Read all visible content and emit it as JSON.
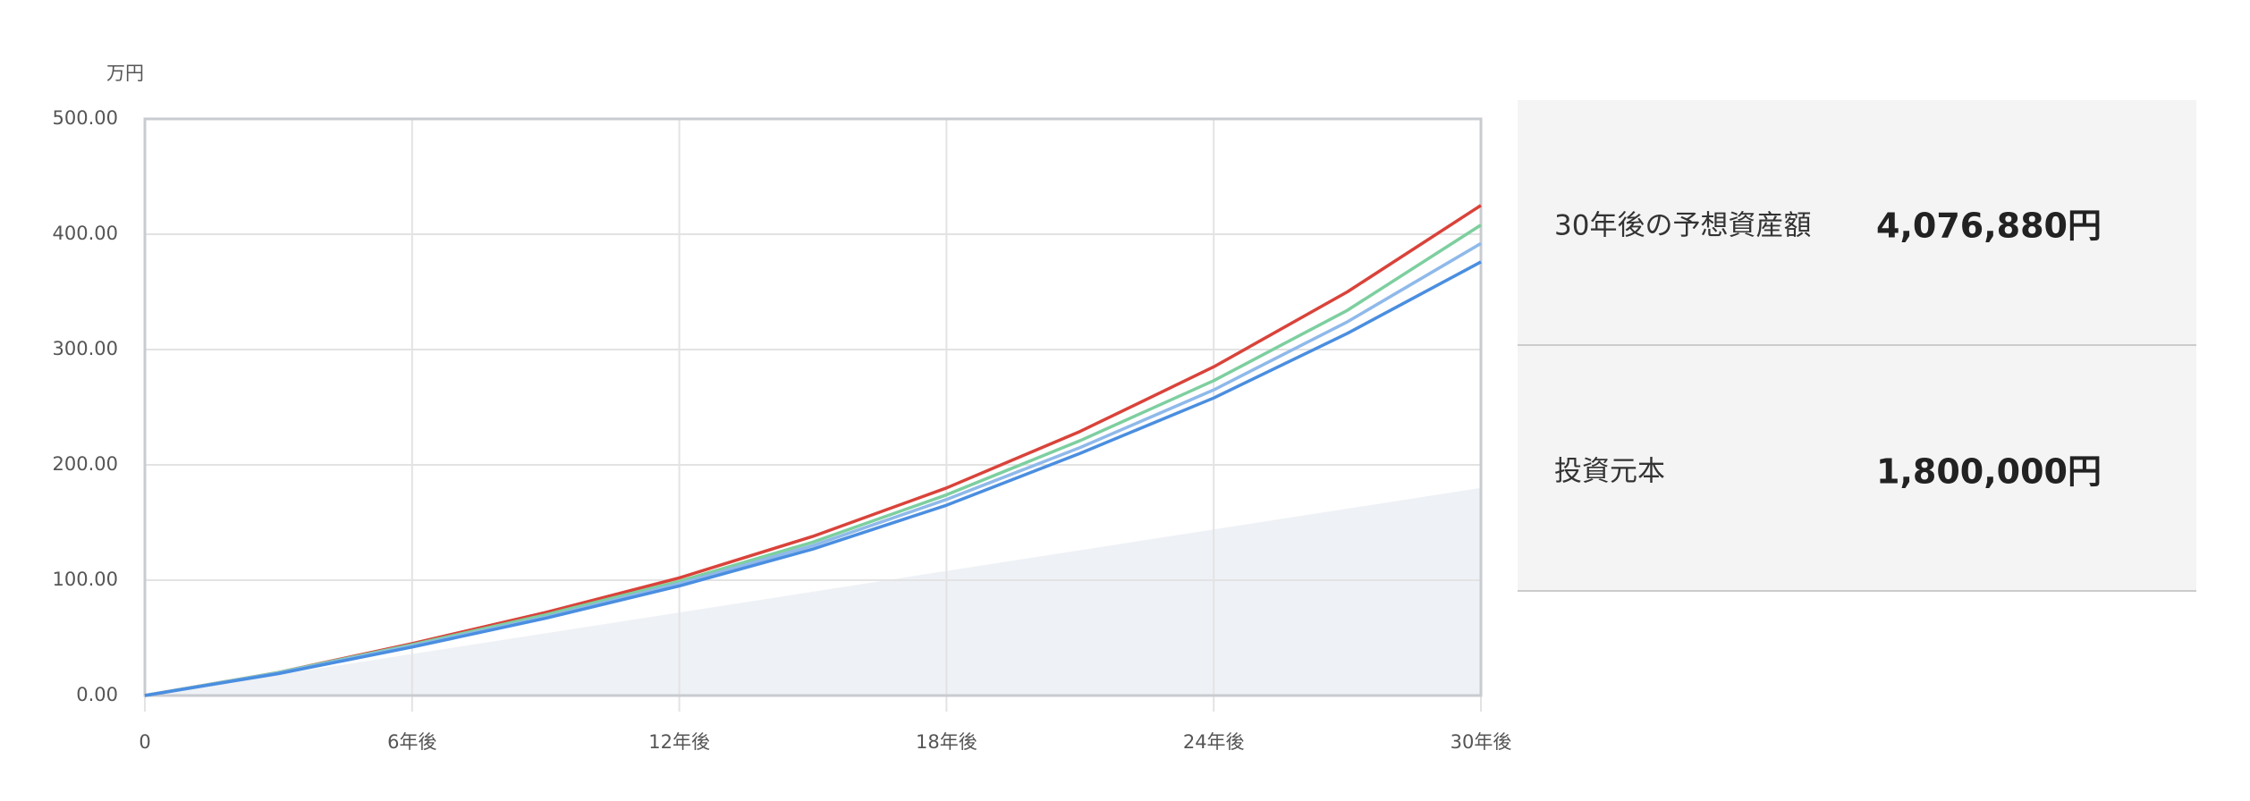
{
  "chart_data": {
    "type": "line",
    "y_unit": "万円",
    "x": [
      0,
      3,
      6,
      9,
      12,
      15,
      18,
      21,
      24,
      27,
      30
    ],
    "xlim": [
      0,
      30
    ],
    "xticks": [
      0,
      {
        "value": 6,
        "label": "6年後"
      },
      {
        "value": 12,
        "label": "12年後"
      },
      {
        "value": 18,
        "label": "18年後"
      },
      {
        "value": 24,
        "label": "24年後"
      },
      {
        "value": 30,
        "label": "30年後"
      }
    ],
    "ylim": [
      0,
      500
    ],
    "yticks": [
      {
        "value": 0,
        "label": "0.00"
      },
      {
        "value": 100,
        "label": "100.00"
      },
      {
        "value": 200,
        "label": "200.00"
      },
      {
        "value": 300,
        "label": "300.00"
      },
      {
        "value": 400,
        "label": "400.00"
      },
      {
        "value": 500,
        "label": "500.00"
      }
    ],
    "grid": true,
    "area": {
      "color": "#eef1f5",
      "values": [
        0,
        18,
        36,
        54,
        72,
        90,
        108,
        126,
        144,
        162,
        180
      ]
    },
    "series": [
      {
        "color": "#d9433a",
        "values": [
          0,
          20,
          45,
          72,
          102,
          138,
          180,
          229,
          285,
          350,
          425
        ]
      },
      {
        "color": "#7dcf9f",
        "values": [
          0,
          20,
          44,
          70,
          99,
          133,
          174,
          221,
          273,
          334,
          408
        ]
      },
      {
        "color": "#8fb9ea",
        "values": [
          0,
          19.5,
          43,
          68,
          97,
          130,
          170,
          215,
          265,
          324,
          392
        ]
      },
      {
        "color": "#4a8ee0",
        "values": [
          0,
          19,
          42,
          67,
          95,
          127,
          165,
          210,
          258,
          314,
          376
        ]
      }
    ]
  },
  "summary": {
    "rows": [
      {
        "label": "30年後の予想資産額",
        "value": "4,076,880円"
      },
      {
        "label": "投資元本",
        "value": "1,800,000円"
      }
    ]
  }
}
